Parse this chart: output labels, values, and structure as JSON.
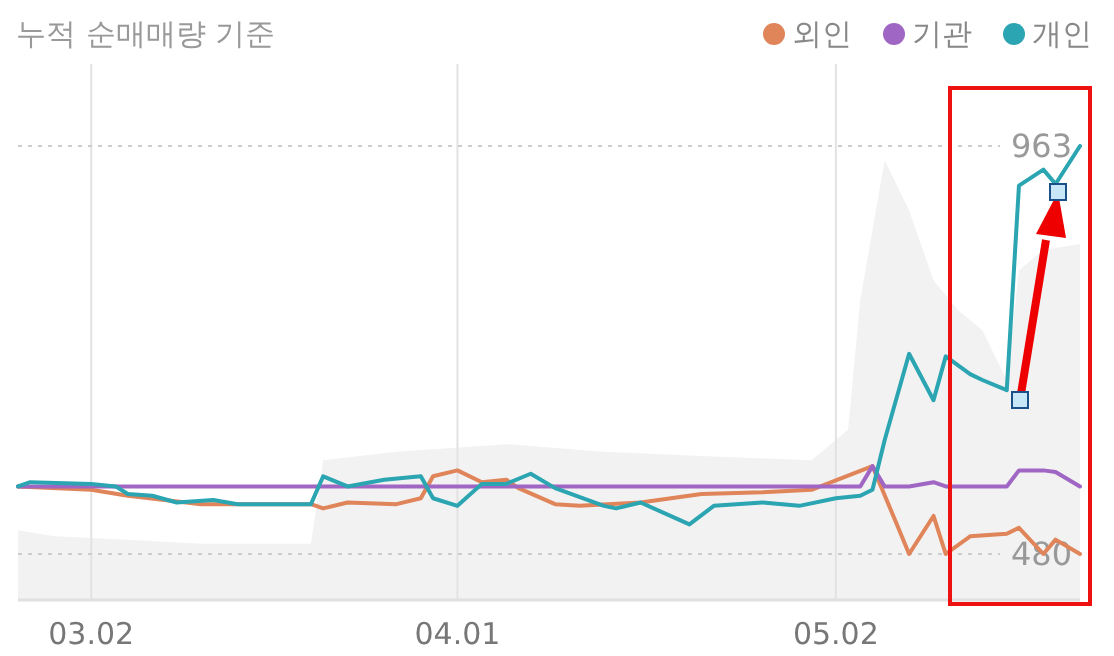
{
  "chart_data": {
    "type": "line",
    "title": "누적 순매매량 기준",
    "xlim": [
      "--02-24",
      "--05-22"
    ],
    "xticks": [
      {
        "value": "--03-02",
        "label": "03.02"
      },
      {
        "value": "--04-01",
        "label": "04.01"
      },
      {
        "value": "--05-02",
        "label": "05.02"
      }
    ],
    "ylim": [
      480,
      963
    ],
    "yticks": [
      480,
      963
    ],
    "grid": true,
    "legend": "top right",
    "series": [
      {
        "type": "area",
        "color": "#f2f2f2",
        "x": [
          "--02-24",
          "--02-27",
          "--03-05",
          "--03-11",
          "--03-20",
          "--03-21",
          "--03-27",
          "--04-05",
          "--04-13",
          "--04-21",
          "--04-30",
          "--05-03",
          "--05-04",
          "--05-06",
          "--05-08",
          "--05-10",
          "--05-12",
          "--05-14",
          "--05-16",
          "--05-17",
          "--05-19",
          "--05-22"
        ],
        "values": [
          508,
          501,
          497,
          492,
          492,
          591,
          601,
          610,
          601,
          596,
          591,
          627,
          781,
          946,
          887,
          804,
          769,
          745,
          686,
          816,
          840,
          847
        ]
      },
      {
        "name": "외인",
        "color": "#e0845a",
        "x": [
          "--02-24",
          "--03-02",
          "--03-05",
          "--03-08",
          "--03-11",
          "--03-20",
          "--03-21",
          "--03-23",
          "--03-27",
          "--03-29",
          "--03-30",
          "--04-01",
          "--04-03",
          "--04-05",
          "--04-06",
          "--04-09",
          "--04-11",
          "--04-16",
          "--04-21",
          "--04-26",
          "--04-30",
          "--05-05",
          "--05-07",
          "--05-08",
          "--05-10",
          "--05-11",
          "--05-13",
          "--05-16",
          "--05-17",
          "--05-19",
          "--05-20",
          "--05-22"
        ],
        "values": [
          560,
          556,
          549,
          544,
          539,
          539,
          534,
          541,
          539,
          546,
          572,
          579,
          565,
          568,
          558,
          539,
          537,
          541,
          551,
          553,
          556,
          584,
          515,
          480,
          525,
          480,
          501,
          504,
          511,
          480,
          497,
          480
        ]
      },
      {
        "name": "기관",
        "color": "#a066c4",
        "x": [
          "--02-24",
          "--05-04",
          "--05-05",
          "--05-06",
          "--05-08",
          "--05-10",
          "--05-11",
          "--05-16",
          "--05-17",
          "--05-19",
          "--05-20",
          "--05-22"
        ],
        "values": [
          560,
          560,
          584,
          560,
          560,
          565,
          560,
          560,
          579,
          579,
          577,
          560
        ]
      },
      {
        "name": "개인",
        "color": "#2ba5b1",
        "x": [
          "--02-24",
          "--02-25",
          "--03-02",
          "--03-04",
          "--03-05",
          "--03-07",
          "--03-09",
          "--03-12",
          "--03-14",
          "--03-20",
          "--03-21",
          "--03-23",
          "--03-26",
          "--03-29",
          "--03-30",
          "--04-01",
          "--04-03",
          "--04-05",
          "--04-07",
          "--04-09",
          "--04-13",
          "--04-14",
          "--04-16",
          "--04-20",
          "--04-22",
          "--04-26",
          "--04-29",
          "--05-02",
          "--05-04",
          "--05-05",
          "--05-06",
          "--05-08",
          "--05-10",
          "--05-11",
          "--05-13",
          "--05-14",
          "--05-16",
          "--05-17",
          "--05-19",
          "--05-20",
          "--05-22"
        ],
        "values": [
          560,
          565,
          563,
          560,
          551,
          549,
          541,
          544,
          539,
          539,
          572,
          560,
          568,
          572,
          546,
          537,
          563,
          563,
          575,
          558,
          537,
          534,
          541,
          515,
          537,
          541,
          537,
          546,
          549,
          556,
          615,
          717,
          662,
          714,
          693,
          686,
          674,
          916,
          935,
          918,
          963
        ]
      }
    ]
  }
}
